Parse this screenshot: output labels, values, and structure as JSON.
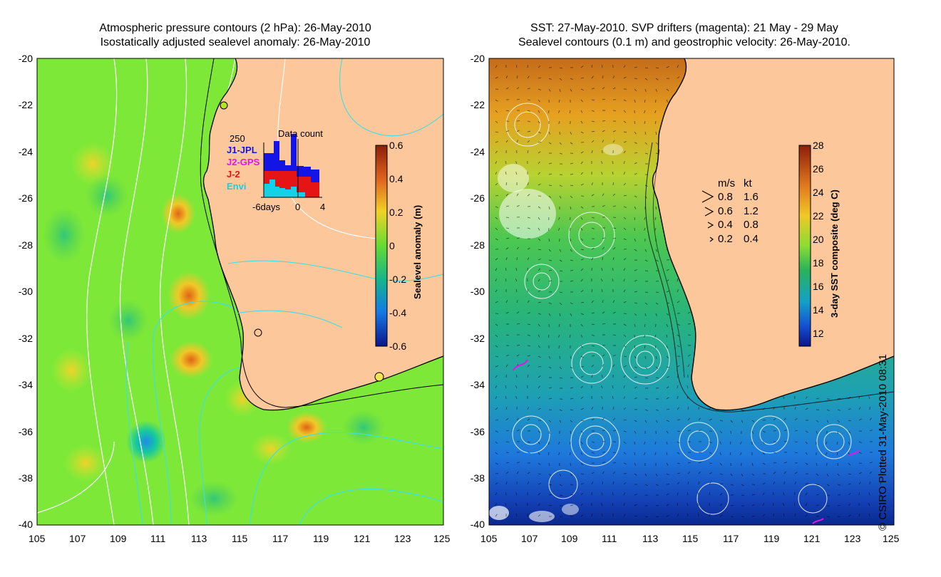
{
  "left_panel": {
    "title_line1": "Atmospheric pressure contours (2 hPa): 26-May-2010",
    "title_line2": "Isostatically adjusted sealevel anomaly: 26-May-2010",
    "colorbar": {
      "label": "Sealevel anomaly (m)",
      "ticks": [
        "0.6",
        "0.4",
        "0.2",
        "0",
        "-0.2",
        "-0.4",
        "-0.6"
      ]
    },
    "inset": {
      "title": "Data count",
      "ymax_label": "250",
      "xticks": [
        "-6days",
        "0",
        "4"
      ],
      "legend": [
        {
          "label": "J1-JPL",
          "color": "#1414e6"
        },
        {
          "label": "J2-GPS",
          "color": "#e614e6"
        },
        {
          "label": "J-2",
          "color": "#e61414"
        },
        {
          "label": "Envi",
          "color": "#14d2e6"
        }
      ]
    }
  },
  "right_panel": {
    "title_line1": "SST: 27-May-2010. SVP drifters (magenta): 21 May - 29 May",
    "title_line2": "Sealevel contours (0.1 m) and geostrophic velocity: 26-May-2010.",
    "colorbar": {
      "label": "3-day SST composite (deg C)",
      "ticks": [
        "28",
        "26",
        "24",
        "22",
        "20",
        "18",
        "16",
        "14",
        "12"
      ]
    },
    "velocity_legend": {
      "header_ms": "m/s",
      "header_kt": "kt",
      "rows": [
        {
          "ms": "0.8",
          "kt": "1.6"
        },
        {
          "ms": "0.6",
          "kt": "1.2"
        },
        {
          "ms": "0.4",
          "kt": "0.8"
        },
        {
          "ms": "0.2",
          "kt": "0.4"
        }
      ]
    }
  },
  "axes": {
    "lat_ticks": [
      "-20",
      "-22",
      "-24",
      "-26",
      "-28",
      "-30",
      "-32",
      "-34",
      "-36",
      "-38",
      "-40"
    ],
    "lon_ticks": [
      "105",
      "107",
      "109",
      "111",
      "113",
      "115",
      "117",
      "119",
      "121",
      "123",
      "125"
    ]
  },
  "copyright": "© CSIRO Plotted 31-May-2010 08:31",
  "colors": {
    "land": "#fcc89b",
    "ocean_green": "#7ee838",
    "contour_cyan": "#3fe0e0",
    "contour_white": "#ffffff"
  }
}
